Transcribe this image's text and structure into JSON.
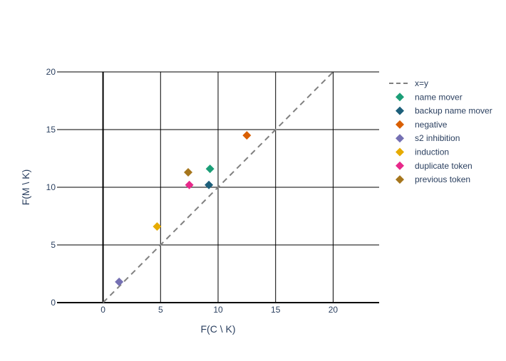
{
  "chart_data": {
    "type": "scatter",
    "title": "",
    "xlabel": "F(C \\ K)",
    "ylabel": "F(M \\ K)",
    "xlim": [
      -4,
      24
    ],
    "ylim": [
      0,
      20
    ],
    "xticks": [
      0,
      5,
      10,
      15,
      20
    ],
    "yticks": [
      0,
      5,
      10,
      15,
      20
    ],
    "grid": true,
    "legend_position": "right",
    "reference_line": {
      "name": "x=y",
      "x": [
        0,
        20
      ],
      "y": [
        0,
        20
      ],
      "color": "#808080",
      "dash": "dash"
    },
    "series": [
      {
        "name": "name mover",
        "color": "#1b9e77",
        "x": [
          9.3
        ],
        "y": [
          11.6
        ]
      },
      {
        "name": "backup name mover",
        "color": "#1d5f7a",
        "x": [
          9.2
        ],
        "y": [
          10.2
        ]
      },
      {
        "name": "negative",
        "color": "#d95f02",
        "x": [
          12.5
        ],
        "y": [
          14.5
        ]
      },
      {
        "name": "s2 inhibition",
        "color": "#7570b3",
        "x": [
          1.4
        ],
        "y": [
          1.8
        ]
      },
      {
        "name": "induction",
        "color": "#e6ab02",
        "x": [
          4.7
        ],
        "y": [
          6.6
        ]
      },
      {
        "name": "duplicate token",
        "color": "#e7298a",
        "x": [
          7.5
        ],
        "y": [
          10.2
        ]
      },
      {
        "name": "previous token",
        "color": "#a6761d",
        "x": [
          7.4
        ],
        "y": [
          11.3
        ]
      }
    ]
  }
}
